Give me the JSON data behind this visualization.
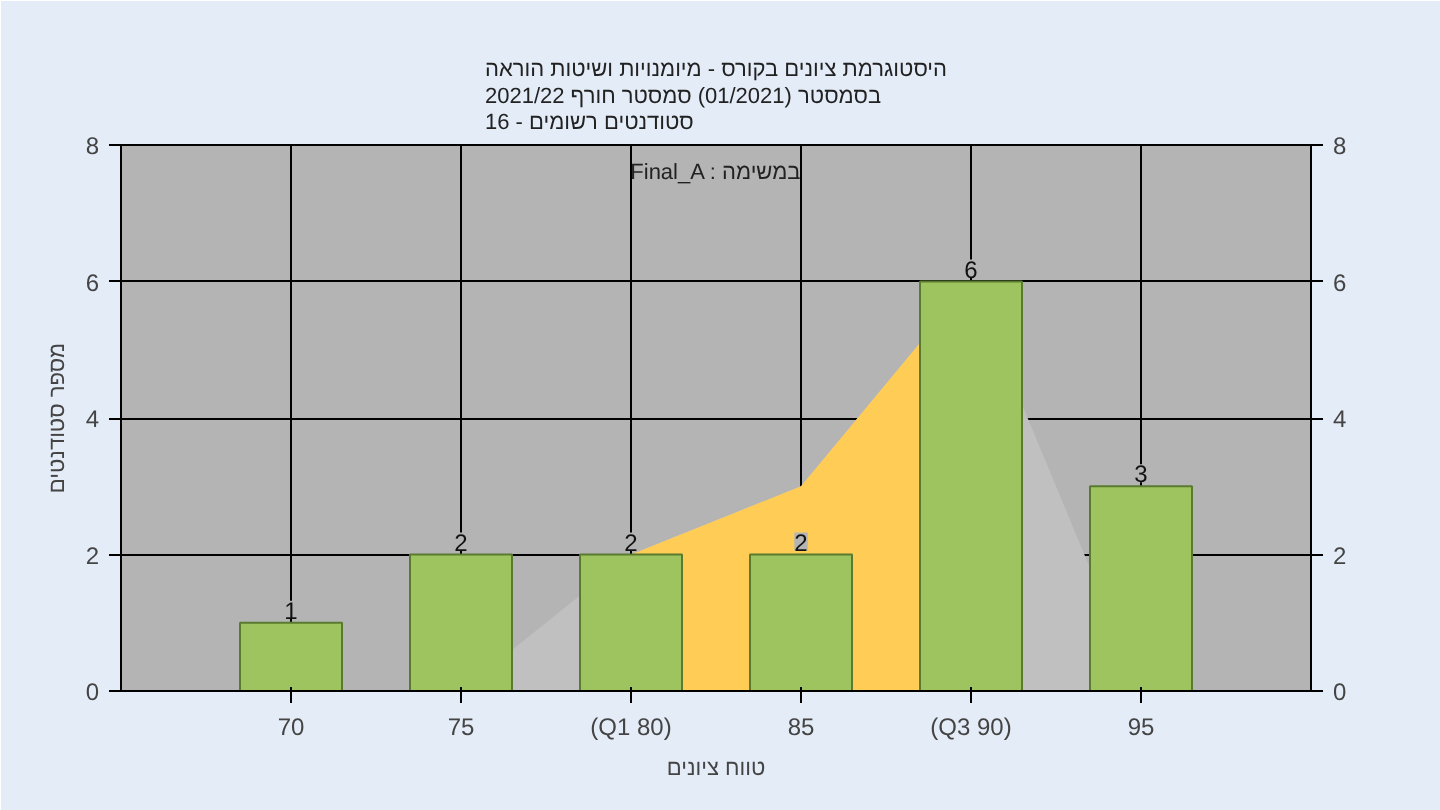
{
  "chart_data": {
    "type": "bar",
    "title": "היסטוגרמת ציונים בקורס - מיומנויות ושיטות הוראה\nבסמסטר  (01/2021)  סמסטר חורף 2021/22\nסטודנטים רשומים - 16",
    "xlabel": "טווח ציונים",
    "ylabel": "מספר סטודנטים",
    "annotations": [
      "Final_A : במשימה"
    ],
    "categories": [
      "70",
      "75",
      "(Q1 80)",
      "85",
      "(Q3 90)",
      "95"
    ],
    "series": [
      {
        "type": "area",
        "color": "#c0c0c0",
        "values": [
          null,
          0,
          2,
          3,
          6,
          0
        ]
      },
      {
        "type": "area",
        "color": "#ffcc55",
        "values": [
          null,
          null,
          2,
          3,
          6,
          null
        ]
      },
      {
        "color": "#9dc45f",
        "values": [
          1,
          2,
          2,
          2,
          6,
          3
        ],
        "value_labels": [
          "1",
          "2",
          "2",
          "2",
          "6",
          "3"
        ]
      }
    ],
    "ylim": [
      0,
      8
    ],
    "yticks": [
      0,
      2,
      4,
      6,
      8
    ],
    "y2lim": [
      0,
      8
    ],
    "y2ticks": [
      0,
      2,
      4,
      6,
      8
    ],
    "grid": true
  }
}
